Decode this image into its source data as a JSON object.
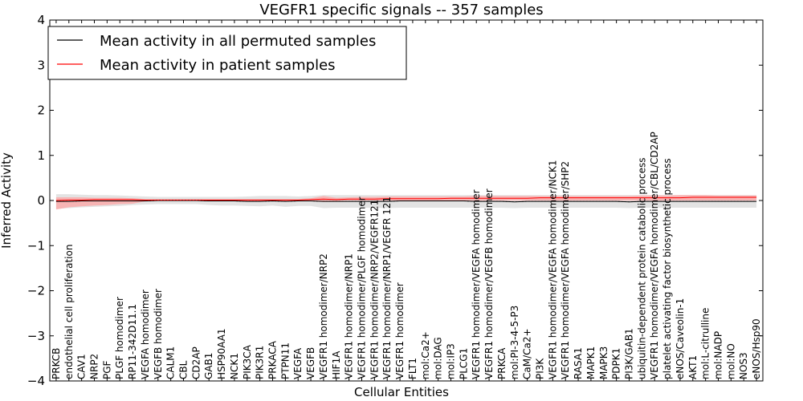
{
  "chart_data": {
    "type": "line",
    "title": "VEGFR1 specific signals -- 357 samples",
    "xlabel": "Cellular Entities",
    "ylabel": "Inferred Activity",
    "ylim": [
      -4,
      4
    ],
    "yticks": [
      "−4",
      "−3",
      "−2",
      "−1",
      "0",
      "1",
      "2",
      "3",
      "4"
    ],
    "ytick_values": [
      -4,
      -3,
      -2,
      -1,
      0,
      1,
      2,
      3,
      4
    ],
    "legend_position": "top-left",
    "categories": [
      "PRKCB",
      "endothelial cell proliferation",
      "CAV1",
      "NRP2",
      "PGF",
      "PLGF homodimer",
      "RP11-342D11.1",
      "VEGFA homodimer",
      "VEGFB homodimer",
      "CALM1",
      "CBL",
      "CD2AP",
      "GAB1",
      "HSP90AA1",
      "NCK1",
      "PIK3CA",
      "PIK3R1",
      "PRKACA",
      "PTPN11",
      "VEGFA",
      "VEGFB",
      "VEGFR1 homodimer/NRP2",
      "HIF1A",
      "VEGFR1 homodimer/NRP1",
      "VEGFR1 homodimer/PLGF homodimer",
      "VEGFR1 homodimer/NRP2/VEGFR121",
      "VEGFR1 homodimer/NRP1/VEGFR 121",
      "VEGFR1 homodimer",
      "FLT1",
      "mol:Ca2+",
      "mol:DAG",
      "mol:IP3",
      "PLCG1",
      "VEGFR1 homodimer/VEGFA homodimer",
      "VEGFR1 homodimer/VEGFB homodimer",
      "PRKCA",
      "mol:PI-3-4-5-P3",
      "CaM/Ca2+",
      "PI3K",
      "VEGFR1 homodimer/VEGFA homodimer/NCK1",
      "VEGFR1 homodimer/VEGFA homodimer/SHP2",
      "RASA1",
      "MAPK1",
      "MAPK3",
      "PDPK1",
      "PI3K/GAB1",
      "ubiquitin-dependent protein catabolic process",
      "VEGFR1 homodimer/VEGFA homodimer/CBL/CD2AP",
      "platelet activating factor biosynthetic process",
      "eNOS/Caveolin-1",
      "AKT1",
      "mol:L-citrulline",
      "mol:NADP",
      "mol:NO",
      "NOS3",
      "eNOS/Hsp90"
    ],
    "series": [
      {
        "name": "Mean activity in all permuted samples",
        "color": "#000000",
        "band_color": "#e0e0e0",
        "values": [
          -0.02,
          -0.02,
          -0.01,
          -0.01,
          -0.01,
          -0.01,
          -0.01,
          -0.01,
          0.0,
          0.0,
          0.0,
          0.0,
          -0.01,
          -0.01,
          -0.01,
          -0.02,
          -0.02,
          -0.01,
          -0.02,
          -0.01,
          -0.01,
          -0.02,
          -0.02,
          -0.02,
          -0.02,
          -0.02,
          -0.02,
          -0.01,
          -0.01,
          -0.01,
          -0.01,
          -0.01,
          -0.01,
          -0.02,
          -0.02,
          -0.02,
          -0.03,
          -0.02,
          -0.02,
          -0.02,
          -0.02,
          -0.02,
          -0.02,
          -0.02,
          -0.02,
          -0.03,
          -0.02,
          -0.02,
          -0.02,
          -0.02,
          -0.02,
          -0.02,
          -0.02,
          -0.02,
          -0.02,
          -0.02
        ],
        "band_upper": [
          0.14,
          0.14,
          0.13,
          0.12,
          0.12,
          0.11,
          0.1,
          0.09,
          0.08,
          0.08,
          0.08,
          0.08,
          0.08,
          0.08,
          0.08,
          0.09,
          0.1,
          0.1,
          0.1,
          0.09,
          0.1,
          0.12,
          0.12,
          0.12,
          0.12,
          0.12,
          0.12,
          0.12,
          0.12,
          0.12,
          0.12,
          0.12,
          0.12,
          0.12,
          0.12,
          0.12,
          0.12,
          0.12,
          0.12,
          0.12,
          0.12,
          0.12,
          0.12,
          0.12,
          0.12,
          0.12,
          0.12,
          0.12,
          0.12,
          0.12,
          0.12,
          0.12,
          0.12,
          0.12,
          0.12,
          0.12
        ],
        "band_lower": [
          -0.18,
          -0.17,
          -0.15,
          -0.14,
          -0.13,
          -0.12,
          -0.1,
          -0.09,
          -0.08,
          -0.08,
          -0.08,
          -0.08,
          -0.1,
          -0.11,
          -0.11,
          -0.12,
          -0.13,
          -0.11,
          -0.14,
          -0.12,
          -0.12,
          -0.17,
          -0.16,
          -0.16,
          -0.16,
          -0.16,
          -0.17,
          -0.16,
          -0.16,
          -0.16,
          -0.16,
          -0.16,
          -0.16,
          -0.16,
          -0.16,
          -0.16,
          -0.17,
          -0.16,
          -0.16,
          -0.16,
          -0.16,
          -0.16,
          -0.16,
          -0.16,
          -0.16,
          -0.17,
          -0.16,
          -0.16,
          -0.16,
          -0.16,
          -0.16,
          -0.16,
          -0.16,
          -0.16,
          -0.16,
          -0.16
        ]
      },
      {
        "name": "Mean activity in patient samples",
        "color": "#ff0000",
        "band_color": "#ff9f9f",
        "values": [
          0.0,
          0.01,
          0.01,
          0.02,
          0.02,
          0.02,
          0.02,
          0.01,
          0.01,
          0.01,
          0.01,
          0.01,
          0.01,
          0.01,
          0.01,
          0.01,
          0.01,
          0.01,
          0.01,
          0.01,
          0.02,
          0.03,
          0.02,
          0.03,
          0.03,
          0.03,
          0.04,
          0.04,
          0.04,
          0.04,
          0.04,
          0.05,
          0.05,
          0.05,
          0.05,
          0.05,
          0.05,
          0.05,
          0.06,
          0.06,
          0.06,
          0.06,
          0.06,
          0.06,
          0.06,
          0.06,
          0.06,
          0.06,
          0.06,
          0.06,
          0.07,
          0.07,
          0.07,
          0.07,
          0.07,
          0.07
        ],
        "band_upper": [
          0.07,
          0.07,
          0.07,
          0.06,
          0.06,
          0.06,
          0.05,
          0.03,
          0.03,
          0.03,
          0.03,
          0.03,
          0.03,
          0.03,
          0.03,
          0.03,
          0.03,
          0.03,
          0.03,
          0.03,
          0.05,
          0.1,
          0.06,
          0.07,
          0.08,
          0.08,
          0.09,
          0.09,
          0.09,
          0.09,
          0.09,
          0.09,
          0.09,
          0.1,
          0.1,
          0.1,
          0.1,
          0.1,
          0.1,
          0.1,
          0.1,
          0.1,
          0.1,
          0.1,
          0.1,
          0.1,
          0.11,
          0.11,
          0.11,
          0.12,
          0.12,
          0.12,
          0.11,
          0.11,
          0.11,
          0.11
        ],
        "band_lower": [
          -0.2,
          -0.15,
          -0.13,
          -0.11,
          -0.1,
          -0.08,
          -0.07,
          -0.02,
          -0.01,
          -0.01,
          -0.01,
          -0.01,
          -0.01,
          -0.01,
          -0.01,
          -0.01,
          -0.01,
          -0.01,
          -0.01,
          -0.01,
          -0.01,
          -0.03,
          -0.01,
          0.0,
          0.0,
          0.0,
          0.0,
          0.0,
          0.0,
          0.0,
          0.0,
          0.0,
          0.0,
          0.0,
          0.0,
          0.0,
          0.0,
          0.0,
          0.0,
          0.0,
          0.0,
          0.0,
          0.0,
          0.0,
          0.0,
          0.0,
          0.0,
          0.0,
          0.0,
          0.0,
          0.0,
          0.0,
          0.0,
          0.0,
          0.0,
          0.0
        ]
      }
    ]
  }
}
